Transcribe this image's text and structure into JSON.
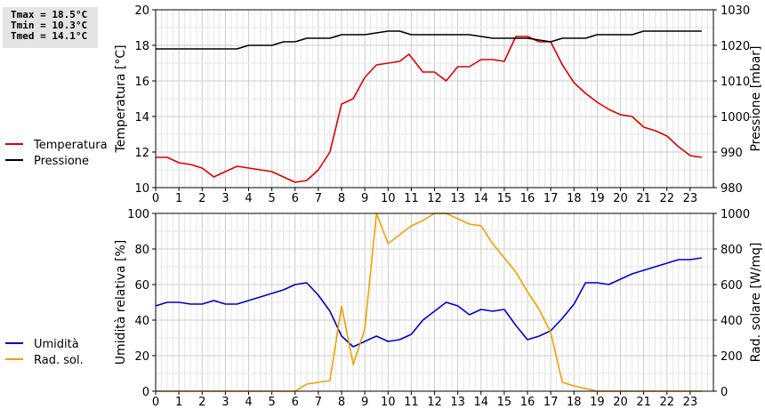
{
  "stats": {
    "tmax": "Tmax = 18.5°C",
    "tmin": "Tmin = 10.3°C",
    "tmed": "Tmed = 14.1°C"
  },
  "colors": {
    "temperature": "#dd0000",
    "pressure": "#000000",
    "humidity": "#0000cc",
    "radiation": "#f0a000",
    "grid": "#cccccc"
  },
  "chart_data": [
    {
      "type": "line",
      "xlim": [
        0,
        24
      ],
      "x_ticks": [
        "0",
        "1",
        "2",
        "3",
        "4",
        "5",
        "6",
        "7",
        "8",
        "9",
        "10",
        "11",
        "12",
        "13",
        "14",
        "15",
        "16",
        "17",
        "18",
        "19",
        "20",
        "21",
        "22",
        "23"
      ],
      "ylabel": "Temperatura [°C]",
      "ylim": [
        10,
        20
      ],
      "y_ticks": [
        "10",
        "12",
        "14",
        "16",
        "18",
        "20"
      ],
      "y2label": "Pressione [mbar]",
      "y2lim": [
        980,
        1030
      ],
      "y2_ticks": [
        "980",
        "990",
        "1000",
        "1010",
        "1020",
        "1030"
      ],
      "grid": true,
      "legend_position": "left",
      "series": [
        {
          "name": "Temperatura",
          "axis": "left",
          "x": [
            0,
            0.5,
            1,
            1.5,
            2,
            2.5,
            3,
            3.5,
            4,
            4.5,
            5,
            5.5,
            6,
            6.5,
            7,
            7.5,
            8,
            8.5,
            9,
            9.5,
            10,
            10.5,
            10.9,
            11.5,
            12,
            12.5,
            13,
            13.5,
            14,
            14.5,
            15,
            15.5,
            16,
            16.5,
            17,
            17.5,
            18,
            18.5,
            19,
            19.5,
            20,
            20.5,
            21,
            21.5,
            22,
            22.5,
            23,
            23.5
          ],
          "values": [
            11.7,
            11.7,
            11.4,
            11.3,
            11.1,
            10.6,
            10.9,
            11.2,
            11.1,
            11.0,
            10.9,
            10.6,
            10.3,
            10.4,
            11.0,
            12.0,
            14.7,
            15.0,
            16.2,
            16.9,
            17.0,
            17.1,
            17.5,
            16.5,
            16.5,
            16.0,
            16.8,
            16.8,
            17.2,
            17.2,
            17.1,
            18.5,
            18.5,
            18.2,
            18.2,
            16.9,
            15.9,
            15.3,
            14.8,
            14.4,
            14.1,
            14.0,
            13.4,
            13.2,
            12.9,
            12.3,
            11.8,
            11.7
          ]
        },
        {
          "name": "Pressione",
          "axis": "right",
          "x": [
            0,
            3.5,
            4,
            5,
            5.5,
            6,
            6.5,
            7.5,
            8,
            9,
            10,
            10.5,
            11,
            12,
            13.5,
            14.5,
            15,
            16,
            17,
            17.5,
            18.5,
            19,
            20.5,
            21,
            23.5
          ],
          "values": [
            1019,
            1019,
            1020,
            1020,
            1021,
            1021,
            1022,
            1022,
            1023,
            1023,
            1024,
            1024,
            1023,
            1023,
            1023,
            1022,
            1022,
            1022,
            1021,
            1022,
            1022,
            1023,
            1023,
            1024,
            1024
          ]
        }
      ]
    },
    {
      "type": "line",
      "xlim": [
        0,
        24
      ],
      "x_ticks": [
        "0",
        "1",
        "2",
        "3",
        "4",
        "5",
        "6",
        "7",
        "8",
        "9",
        "10",
        "11",
        "12",
        "13",
        "14",
        "15",
        "16",
        "17",
        "18",
        "19",
        "20",
        "21",
        "22",
        "23"
      ],
      "ylabel": "Umidità relativa [%]",
      "ylim": [
        0,
        100
      ],
      "y_ticks": [
        "0",
        "20",
        "40",
        "60",
        "80",
        "100"
      ],
      "y2label": "Rad. solare [W/mq]",
      "y2lim": [
        0,
        1000
      ],
      "y2_ticks": [
        "0",
        "200",
        "400",
        "600",
        "800",
        "1000"
      ],
      "grid": true,
      "legend_position": "left",
      "series": [
        {
          "name": "Umidità",
          "axis": "left",
          "x": [
            0,
            0.5,
            1,
            1.5,
            2,
            2.5,
            3,
            3.5,
            4,
            4.5,
            5,
            5.5,
            6,
            6.5,
            7,
            7.5,
            8,
            8.5,
            9,
            9.5,
            10,
            10.5,
            11,
            11.5,
            12,
            12.5,
            13,
            13.5,
            14,
            14.5,
            15,
            15.5,
            16,
            16.5,
            17,
            17.5,
            18,
            18.5,
            19,
            19.5,
            20,
            20.5,
            21,
            21.5,
            22,
            22.5,
            23,
            23.5
          ],
          "values": [
            48,
            50,
            50,
            49,
            49,
            51,
            49,
            49,
            51,
            53,
            55,
            57,
            60,
            61,
            54,
            45,
            31,
            25,
            28,
            31,
            28,
            29,
            32,
            40,
            45,
            50,
            48,
            43,
            46,
            45,
            46,
            37,
            29,
            31,
            34,
            41,
            49,
            61,
            61,
            60,
            63,
            66,
            68,
            70,
            72,
            74,
            74,
            75
          ]
        },
        {
          "name": "Rad. sol.",
          "axis": "right",
          "x": [
            0,
            6,
            6.5,
            7,
            7.5,
            8,
            8.5,
            9,
            9.5,
            10,
            10.5,
            11,
            11.5,
            12,
            12.5,
            13,
            13.5,
            14,
            14.5,
            15,
            15.5,
            16,
            16.5,
            17,
            17.5,
            18,
            18.5,
            19,
            20,
            21,
            22,
            23,
            23.5
          ],
          "values": [
            0,
            0,
            40,
            50,
            60,
            480,
            150,
            350,
            1000,
            830,
            880,
            930,
            960,
            1000,
            1000,
            970,
            940,
            930,
            830,
            750,
            670,
            560,
            460,
            330,
            50,
            30,
            15,
            0,
            0,
            0,
            0,
            0,
            0
          ]
        }
      ]
    }
  ]
}
